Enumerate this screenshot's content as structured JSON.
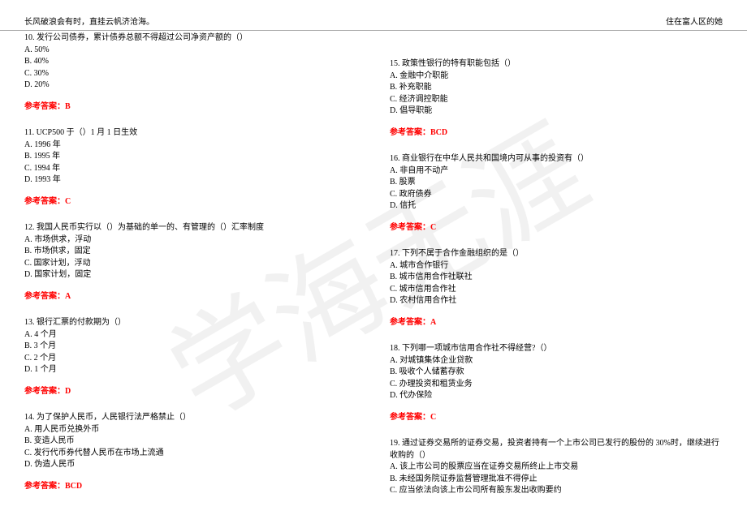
{
  "watermark_text": "学海无涯",
  "header": {
    "left": "长风破浪会有时，直挂云帆济沧海。",
    "right": "住在富人区的她"
  },
  "answer_label": "参考答案：",
  "left_col": [
    {
      "q": "10. 发行公司债券，累计债券总额不得超过公司净资产额的（）",
      "opts": [
        "A. 50%",
        "B. 40%",
        "C. 30%",
        "D. 20%"
      ],
      "ans": "B"
    },
    {
      "q": "11. UCP500 于（）1 月 1 日生效",
      "opts": [
        "A. 1996 年",
        "B. 1995 年",
        "C. 1994 年",
        "D. 1993 年"
      ],
      "ans": "C"
    },
    {
      "q": "12. 我国人民币实行以（）为基础的单一的、有管理的（）汇率制度",
      "opts": [
        "A. 市场供求，浮动",
        "B. 市场供求，固定",
        "C. 国家计划，浮动",
        "D. 国家计划，固定"
      ],
      "ans": "A"
    },
    {
      "q": "13. 银行汇票的付款期为（）",
      "opts": [
        "A. 4 个月",
        "B. 3 个月",
        "C. 2 个月",
        "D. 1 个月"
      ],
      "ans": "D"
    },
    {
      "q": "14. 为了保护人民币，人民银行法严格禁止（）",
      "opts": [
        "A. 用人民币兑换外币",
        "B. 变造人民币",
        "C. 发行代币券代替人民币在市场上流通",
        "D. 伪造人民币"
      ],
      "ans": "BCD"
    }
  ],
  "right_col": [
    {
      "q": "15. 政策性银行的特有职能包括（）",
      "opts": [
        "A. 金融中介职能",
        "B. 补充职能",
        "C. 经济调控职能",
        "D. 倡导职能"
      ],
      "ans": "BCD",
      "pre_spacer": true
    },
    {
      "q": "16. 商业银行在中华人民共和国境内可从事的投资有（）",
      "opts": [
        "A. 非自用不动产",
        "B. 股票",
        "C. 政府债券",
        "D. 信托"
      ],
      "ans": "C"
    },
    {
      "q": "17. 下列不属于合作金融组织的是（）",
      "opts": [
        "A. 城市合作银行",
        "B. 城市信用合作社联社",
        "C. 城市信用合作社",
        "D. 农村信用合作社"
      ],
      "ans": "A"
    },
    {
      "q": "18. 下列哪一项城市信用合作社不得经营?（）",
      "opts": [
        "A. 对城镇集体企业贷款",
        "B. 吸收个人储蓄存款",
        "C. 办理投资和租赁业务",
        "D. 代办保险"
      ],
      "ans": "C"
    },
    {
      "q": "19. 通过证券交易所的证券交易，投资者持有一个上市公司已发行的股份的 30%时，继续进行收购的（）",
      "opts": [
        "A. 该上市公司的股票应当在证券交易所终止上市交易",
        "B. 未经国务院证券监督管理批准不得停止",
        "C. 应当依法向该上市公司所有股东发出收购要约"
      ],
      "ans": null
    }
  ],
  "colors": {
    "text": "#000000",
    "answer": "#ff0000",
    "watermark": "#e8e8e8",
    "border": "#aaaaaa"
  }
}
